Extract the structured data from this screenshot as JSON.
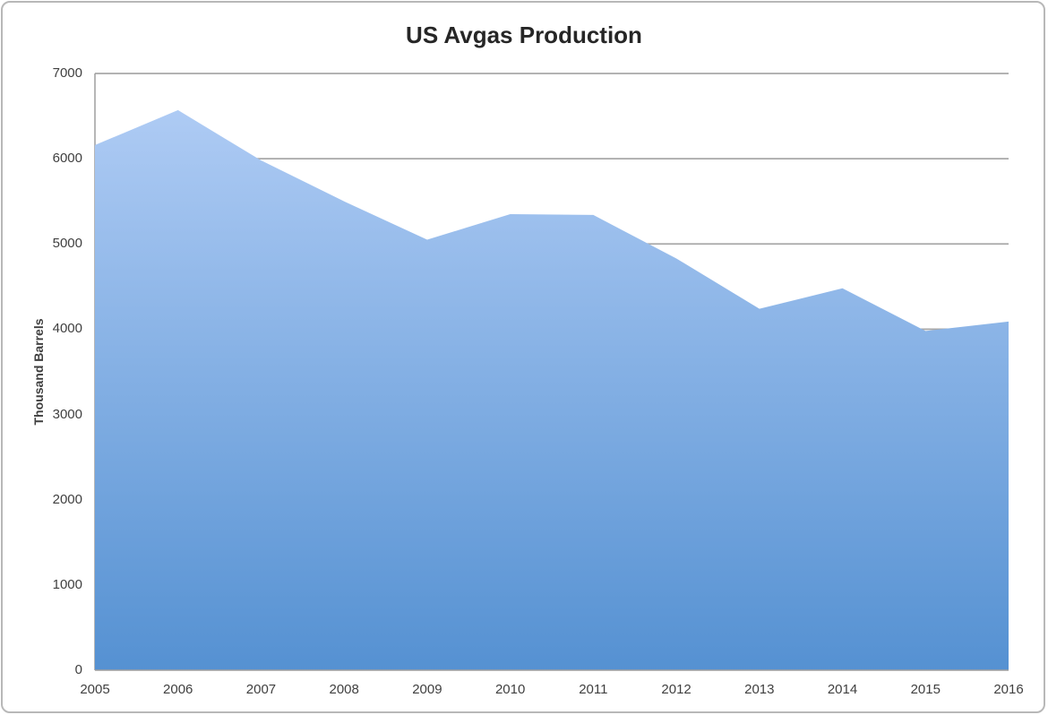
{
  "chart_data": {
    "type": "area",
    "title": "US Avgas Production",
    "ylabel": "Thousand Barrels",
    "xlabel": "",
    "categories": [
      "2005",
      "2006",
      "2007",
      "2008",
      "2009",
      "2010",
      "2011",
      "2012",
      "2013",
      "2014",
      "2015",
      "2016"
    ],
    "series": [
      {
        "name": "US Avgas Production",
        "values": [
          6160,
          6570,
          5980,
          5500,
          5050,
          5350,
          5340,
          4830,
          4240,
          4480,
          3980,
          4090
        ]
      }
    ],
    "ylim": [
      0,
      7000
    ],
    "y_ticks": [
      0,
      1000,
      2000,
      3000,
      4000,
      5000,
      6000,
      7000
    ],
    "grid": true,
    "gridlines_drawn_under_area": true,
    "legend_position": "none",
    "colors": {
      "area_gradient_top": "#aecbf4",
      "area_gradient_bottom": "#5591d2",
      "gridline": "#a8a8a8",
      "axis_line": "#9e9e9e",
      "tick_text": "#3f3f3f",
      "title_text": "#262626",
      "frame_border": "#b8b8b8",
      "background": "#ffffff"
    }
  }
}
